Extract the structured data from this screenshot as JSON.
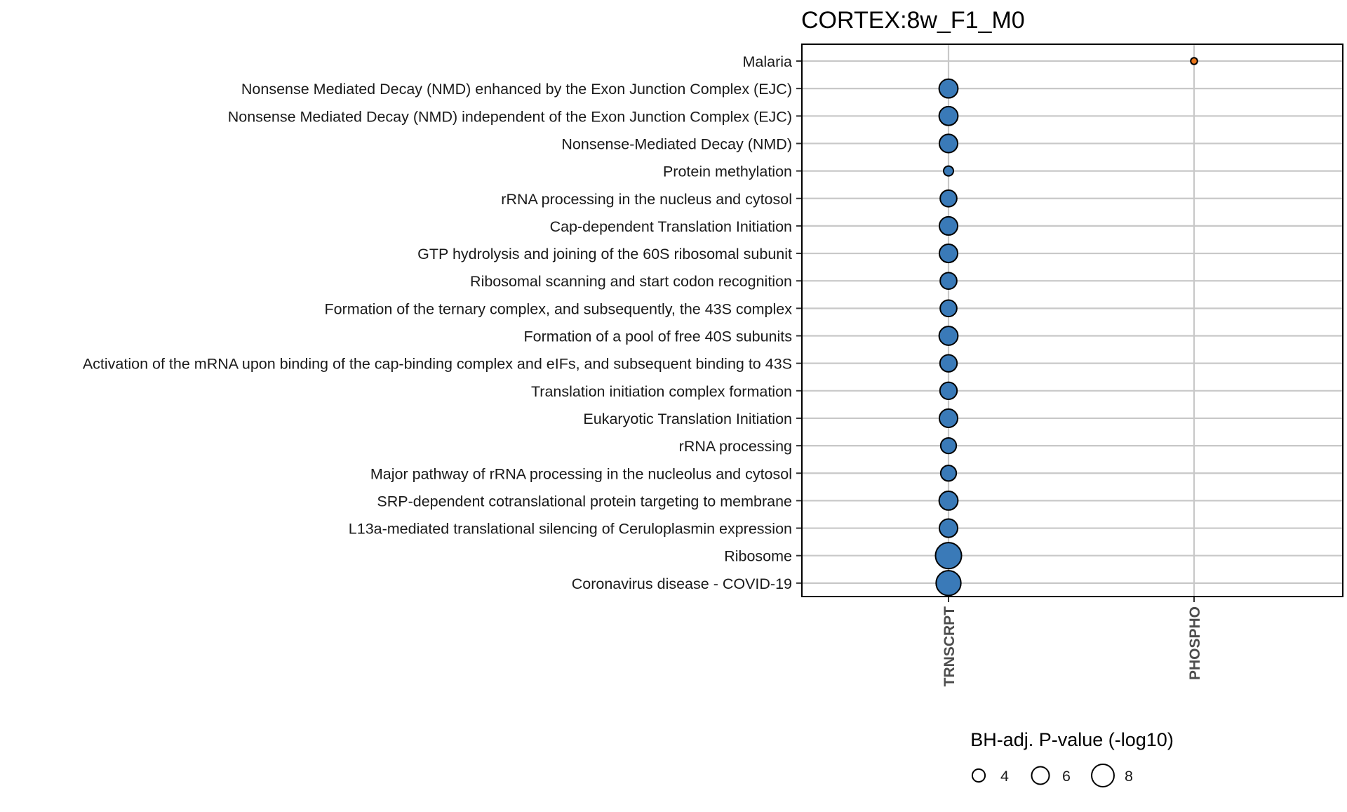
{
  "chart_data": {
    "type": "scatter",
    "title": "CORTEX:8w_F1_M0",
    "x_categories": [
      "TRNSCRPT",
      "PHOSPHO"
    ],
    "y_categories": [
      "Malaria",
      "Nonsense Mediated Decay (NMD) enhanced by the Exon Junction Complex (EJC)",
      "Nonsense Mediated Decay (NMD) independent of the Exon Junction Complex (EJC)",
      "Nonsense-Mediated Decay (NMD)",
      "Protein methylation",
      "rRNA processing in the nucleus and cytosol",
      "Cap-dependent Translation Initiation",
      "GTP hydrolysis and joining of the 60S ribosomal subunit",
      "Ribosomal scanning and start codon recognition",
      "Formation of the ternary complex, and subsequently, the 43S complex",
      "Formation of a pool of free 40S subunits",
      "Activation of the mRNA upon binding of the cap-binding complex and eIFs, and subsequent binding to 43S",
      "Translation initiation complex formation",
      "Eukaryotic Translation Initiation",
      "rRNA processing",
      "Major pathway of rRNA processing in the nucleolus and cytosol",
      "SRP-dependent cotranslational protein targeting to membrane",
      "L13a-mediated translational silencing of Ceruloplasmin expression",
      "Ribosome",
      "Coronavirus disease - COVID-19"
    ],
    "points": [
      {
        "y": "Malaria",
        "x": "PHOSPHO",
        "size": 1.5,
        "color": "#e8751a"
      },
      {
        "y": "Nonsense Mediated Decay (NMD) enhanced by the Exon Junction Complex (EJC)",
        "x": "TRNSCRPT",
        "size": 6.5,
        "color": "#3a7ab8"
      },
      {
        "y": "Nonsense Mediated Decay (NMD) independent of the Exon Junction Complex (EJC)",
        "x": "TRNSCRPT",
        "size": 6.5,
        "color": "#3a7ab8"
      },
      {
        "y": "Nonsense-Mediated Decay (NMD)",
        "x": "TRNSCRPT",
        "size": 6.3,
        "color": "#3a7ab8"
      },
      {
        "y": "Protein methylation",
        "x": "TRNSCRPT",
        "size": 2.8,
        "color": "#3a7ab8"
      },
      {
        "y": "rRNA processing in the nucleus and cytosol",
        "x": "TRNSCRPT",
        "size": 5.6,
        "color": "#3a7ab8"
      },
      {
        "y": "Cap-dependent Translation Initiation",
        "x": "TRNSCRPT",
        "size": 6.3,
        "color": "#3a7ab8"
      },
      {
        "y": "GTP hydrolysis and joining of the 60S ribosomal subunit",
        "x": "TRNSCRPT",
        "size": 6.3,
        "color": "#3a7ab8"
      },
      {
        "y": "Ribosomal scanning and start codon recognition",
        "x": "TRNSCRPT",
        "size": 5.6,
        "color": "#3a7ab8"
      },
      {
        "y": "Formation of the ternary complex, and subsequently, the 43S complex",
        "x": "TRNSCRPT",
        "size": 5.6,
        "color": "#3a7ab8"
      },
      {
        "y": "Formation of a pool of free 40S subunits",
        "x": "TRNSCRPT",
        "size": 6.5,
        "color": "#3a7ab8"
      },
      {
        "y": "Activation of the mRNA upon binding of the cap-binding complex and eIFs, and subsequent binding to 43S",
        "x": "TRNSCRPT",
        "size": 5.8,
        "color": "#3a7ab8"
      },
      {
        "y": "Translation initiation complex formation",
        "x": "TRNSCRPT",
        "size": 5.8,
        "color": "#3a7ab8"
      },
      {
        "y": "Eukaryotic Translation Initiation",
        "x": "TRNSCRPT",
        "size": 6.3,
        "color": "#3a7ab8"
      },
      {
        "y": "rRNA processing",
        "x": "TRNSCRPT",
        "size": 5.2,
        "color": "#3a7ab8"
      },
      {
        "y": "Major pathway of rRNA processing in the nucleolus and cytosol",
        "x": "TRNSCRPT",
        "size": 5.2,
        "color": "#3a7ab8"
      },
      {
        "y": "SRP-dependent cotranslational protein targeting to membrane",
        "x": "TRNSCRPT",
        "size": 6.5,
        "color": "#3a7ab8"
      },
      {
        "y": "L13a-mediated translational silencing of Ceruloplasmin expression",
        "x": "TRNSCRPT",
        "size": 6.3,
        "color": "#3a7ab8"
      },
      {
        "y": "Ribosome",
        "x": "TRNSCRPT",
        "size": 9.5,
        "color": "#3a7ab8"
      },
      {
        "y": "Coronavirus disease - COVID-19",
        "x": "TRNSCRPT",
        "size": 9.0,
        "color": "#3a7ab8"
      }
    ],
    "legend": {
      "title": "BH-adj. P-value (-log10)",
      "sizes": [
        4,
        6,
        8
      ],
      "labels": [
        "4",
        "6",
        "8"
      ],
      "placement": "bottom"
    },
    "grid": true
  }
}
